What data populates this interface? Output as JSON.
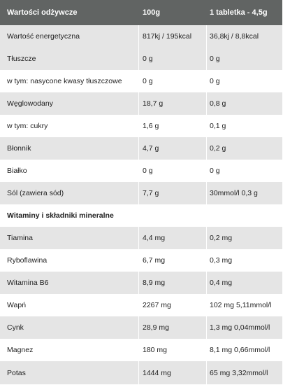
{
  "header": {
    "col1": "Wartości odżywcze",
    "col2": "100g",
    "col3": "1 tabletka - 4,5g"
  },
  "rows": [
    {
      "name": "Wartość energetyczna",
      "per100": "817kj  / 195kcal",
      "perTablet": "36,8kj / 8,8kcal"
    },
    {
      "name": "Tłuszcze",
      "per100": "0 g",
      "perTablet": "0 g"
    },
    {
      "name": "w tym: nasycone kwasy tłuszczowe",
      "per100": "0 g",
      "perTablet": "0 g"
    },
    {
      "name": "Węglowodany",
      "per100": "18,7 g",
      "perTablet": "0,8 g"
    },
    {
      "name": "w tym: cukry",
      "per100": "1,6 g",
      "perTablet": "0,1 g"
    },
    {
      "name": "Błonnik",
      "per100": "4,7 g",
      "perTablet": "0,2 g"
    },
    {
      "name": "Białko",
      "per100": "0 g",
      "perTablet": "0 g"
    },
    {
      "name": "Sól (zawiera sód)",
      "per100": "7,7 g",
      "perTablet": "30mmol/l 0,3 g"
    }
  ],
  "section_title": "Witaminy i składniki mineralne",
  "minerals": [
    {
      "name": "Tiamina",
      "per100": "4,4 mg",
      "perTablet": "0,2 mg"
    },
    {
      "name": "Ryboflawina",
      "per100": "6,7 mg",
      "perTablet": "0,3 mg"
    },
    {
      "name": "Witamina B6",
      "per100": "8,9 mg",
      "perTablet": "0,4 mg"
    },
    {
      "name": "Wapń",
      "per100": "2267 mg",
      "perTablet": "102 mg 5,11mmol/l"
    },
    {
      "name": "Cynk",
      "per100": "28,9 mg",
      "perTablet": "1,3 mg 0,04mmol/l"
    },
    {
      "name": "Magnez",
      "per100": "180 mg",
      "perTablet": "8,1 mg 0,66mmol/l"
    },
    {
      "name": "Potas",
      "per100": "1444 mg",
      "perTablet": "65 mg 3,32mmol/l"
    }
  ]
}
